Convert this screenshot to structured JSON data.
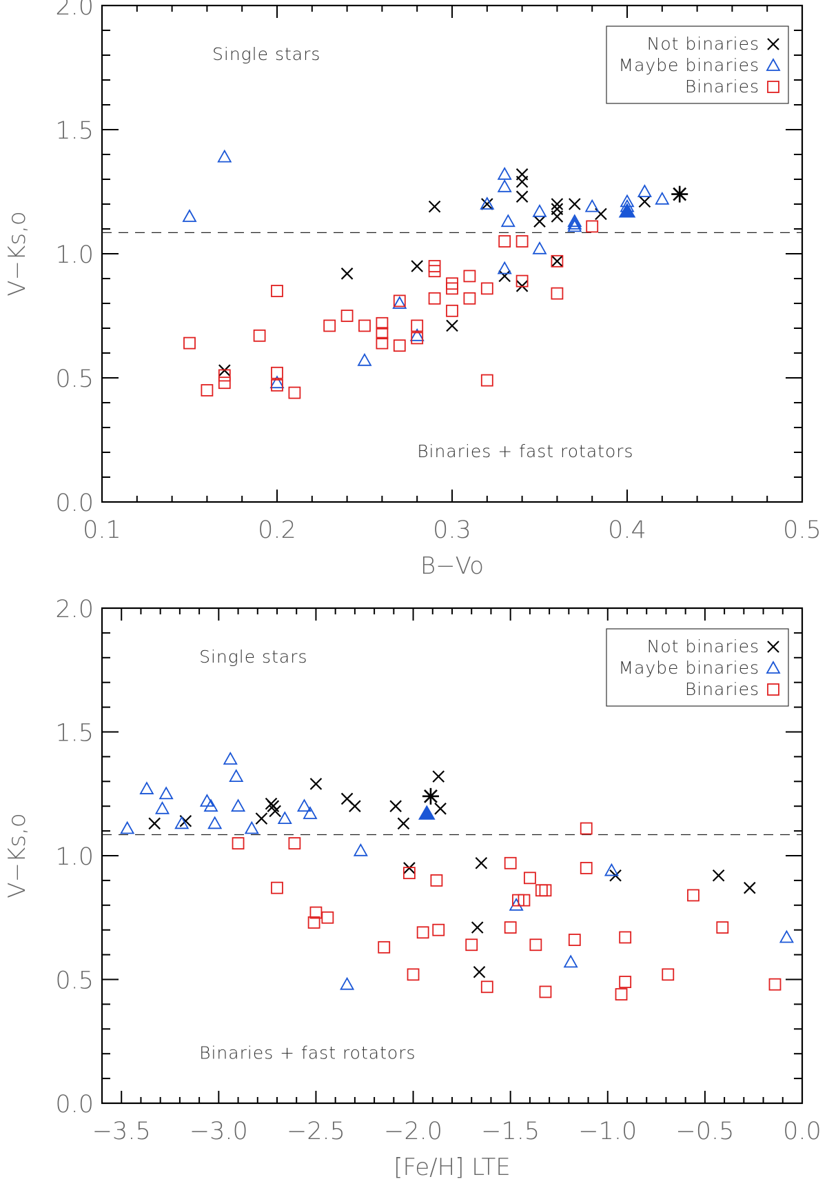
{
  "colors": {
    "not_binaries": "#000000",
    "maybe_binaries": "#1a56d6",
    "binaries": "#e02020",
    "axes": "#000000",
    "text": "#555555"
  },
  "chart_data": [
    {
      "type": "scatter",
      "xlabel": "B−Vo",
      "ylabel": "V−Ks,o",
      "xlim": [
        0.1,
        0.5
      ],
      "ylim": [
        0.0,
        2.0
      ],
      "xticks": [
        0.1,
        0.2,
        0.3,
        0.4,
        0.5
      ],
      "xtick_labels": [
        "0.1",
        "0.2",
        "0.3",
        "0.4",
        "0.5"
      ],
      "yticks": [
        0.0,
        0.5,
        1.0,
        1.5,
        2.0
      ],
      "ytick_labels": [
        "0.0",
        "0.5",
        "1.0",
        "1.5",
        "2.0"
      ],
      "dashed_line_y": 1.085,
      "annotations": [
        {
          "text": "Single stars",
          "x": 0.163,
          "y": 1.78,
          "anchor": "start"
        },
        {
          "text": "Binaries + fast rotators",
          "x": 0.28,
          "y": 0.18,
          "anchor": "start"
        }
      ],
      "legend": {
        "position": "top-right",
        "entries": [
          "Not binaries",
          "Maybe binaries",
          "Binaries"
        ]
      },
      "series": [
        {
          "name": "Not binaries",
          "marker": "x",
          "points": [
            [
              0.17,
              0.53
            ],
            [
              0.24,
              0.92
            ],
            [
              0.28,
              0.95
            ],
            [
              0.29,
              1.19
            ],
            [
              0.3,
              0.71
            ],
            [
              0.32,
              1.2
            ],
            [
              0.33,
              0.91
            ],
            [
              0.34,
              1.32
            ],
            [
              0.34,
              1.29
            ],
            [
              0.34,
              1.23
            ],
            [
              0.34,
              0.87
            ],
            [
              0.35,
              1.13
            ],
            [
              0.36,
              1.2
            ],
            [
              0.36,
              1.18
            ],
            [
              0.36,
              1.15
            ],
            [
              0.36,
              0.97
            ],
            [
              0.37,
              1.2
            ],
            [
              0.385,
              1.16
            ],
            [
              0.41,
              1.21
            ]
          ]
        },
        {
          "name": "Maybe binaries",
          "marker": "triangle",
          "points": [
            [
              0.15,
              1.15
            ],
            [
              0.17,
              1.39
            ],
            [
              0.2,
              0.48
            ],
            [
              0.25,
              0.57
            ],
            [
              0.27,
              0.8
            ],
            [
              0.28,
              0.67
            ],
            [
              0.32,
              1.2
            ],
            [
              0.33,
              1.32
            ],
            [
              0.33,
              1.27
            ],
            [
              0.332,
              1.13
            ],
            [
              0.33,
              0.94
            ],
            [
              0.35,
              1.17
            ],
            [
              0.35,
              1.02
            ],
            [
              0.37,
              1.13
            ],
            [
              0.37,
              1.12
            ],
            [
              0.37,
              1.11
            ],
            [
              0.38,
              1.19
            ],
            [
              0.4,
              1.21
            ],
            [
              0.4,
              1.19
            ],
            [
              0.41,
              1.25
            ],
            [
              0.42,
              1.22
            ]
          ]
        },
        {
          "name": "Binaries",
          "marker": "square",
          "points": [
            [
              0.15,
              0.64
            ],
            [
              0.16,
              0.45
            ],
            [
              0.17,
              0.51
            ],
            [
              0.17,
              0.48
            ],
            [
              0.19,
              0.67
            ],
            [
              0.2,
              0.85
            ],
            [
              0.2,
              0.52
            ],
            [
              0.2,
              0.47
            ],
            [
              0.21,
              0.44
            ],
            [
              0.23,
              0.71
            ],
            [
              0.24,
              0.75
            ],
            [
              0.25,
              0.71
            ],
            [
              0.26,
              0.72
            ],
            [
              0.26,
              0.68
            ],
            [
              0.26,
              0.64
            ],
            [
              0.27,
              0.81
            ],
            [
              0.27,
              0.63
            ],
            [
              0.28,
              0.71
            ],
            [
              0.28,
              0.66
            ],
            [
              0.29,
              0.95
            ],
            [
              0.29,
              0.93
            ],
            [
              0.29,
              0.82
            ],
            [
              0.3,
              0.88
            ],
            [
              0.3,
              0.86
            ],
            [
              0.3,
              0.77
            ],
            [
              0.31,
              0.91
            ],
            [
              0.31,
              0.82
            ],
            [
              0.32,
              0.86
            ],
            [
              0.32,
              0.49
            ],
            [
              0.33,
              1.05
            ],
            [
              0.34,
              1.05
            ],
            [
              0.34,
              0.89
            ],
            [
              0.36,
              0.97
            ],
            [
              0.36,
              0.84
            ],
            [
              0.38,
              1.11
            ]
          ]
        },
        {
          "name": "",
          "marker": "asterisk",
          "points": [
            [
              0.43,
              1.24
            ]
          ]
        },
        {
          "name": "",
          "marker": "filled-triangle",
          "points": [
            [
              0.4,
              1.17
            ]
          ]
        }
      ]
    },
    {
      "type": "scatter",
      "xlabel": "[Fe/H] LTE",
      "ylabel": "V−Ks,o",
      "xlim": [
        -3.6,
        0.0
      ],
      "ylim": [
        0.0,
        2.0
      ],
      "xticks": [
        -3.5,
        -3.0,
        -2.5,
        -2.0,
        -1.5,
        -1.0,
        -0.5,
        0.0
      ],
      "xtick_labels": [
        "−3.5",
        "−3.0",
        "−2.5",
        "−2.0",
        "−1.5",
        "−1.0",
        "−0.5",
        "0.0"
      ],
      "yticks": [
        0.0,
        0.5,
        1.0,
        1.5,
        2.0
      ],
      "ytick_labels": [
        "0.0",
        "0.5",
        "1.0",
        "1.5",
        "2.0"
      ],
      "dashed_line_y": 1.085,
      "annotations": [
        {
          "text": "Single stars",
          "x": -3.1,
          "y": 1.78,
          "anchor": "start"
        },
        {
          "text": "Binaries + fast rotators",
          "x": -3.1,
          "y": 0.18,
          "anchor": "start"
        }
      ],
      "legend": {
        "position": "top-right",
        "entries": [
          "Not binaries",
          "Maybe binaries",
          "Binaries"
        ]
      },
      "series": [
        {
          "name": "Not binaries",
          "marker": "x",
          "points": [
            [
              -3.33,
              1.13
            ],
            [
              -3.17,
              1.14
            ],
            [
              -2.78,
              1.15
            ],
            [
              -2.73,
              1.21
            ],
            [
              -2.72,
              1.2
            ],
            [
              -2.71,
              1.18
            ],
            [
              -2.5,
              1.29
            ],
            [
              -2.34,
              1.23
            ],
            [
              -2.3,
              1.2
            ],
            [
              -2.09,
              1.2
            ],
            [
              -2.05,
              1.13
            ],
            [
              -2.02,
              0.95
            ],
            [
              -1.87,
              1.32
            ],
            [
              -1.86,
              1.19
            ],
            [
              -1.65,
              0.97
            ],
            [
              -1.67,
              0.71
            ],
            [
              -1.66,
              0.53
            ],
            [
              -0.96,
              0.92
            ],
            [
              -0.43,
              0.92
            ],
            [
              -0.27,
              0.87
            ]
          ]
        },
        {
          "name": "Maybe binaries",
          "marker": "triangle",
          "points": [
            [
              -3.47,
              1.11
            ],
            [
              -3.37,
              1.27
            ],
            [
              -3.29,
              1.19
            ],
            [
              -3.27,
              1.25
            ],
            [
              -3.19,
              1.13
            ],
            [
              -3.06,
              1.22
            ],
            [
              -3.04,
              1.2
            ],
            [
              -3.02,
              1.13
            ],
            [
              -2.94,
              1.39
            ],
            [
              -2.91,
              1.32
            ],
            [
              -2.9,
              1.2
            ],
            [
              -2.83,
              1.11
            ],
            [
              -2.66,
              1.15
            ],
            [
              -2.56,
              1.2
            ],
            [
              -2.53,
              1.17
            ],
            [
              -2.27,
              1.02
            ],
            [
              -2.34,
              0.48
            ],
            [
              -1.47,
              0.8
            ],
            [
              -1.19,
              0.57
            ],
            [
              -0.98,
              0.94
            ],
            [
              -0.08,
              0.67
            ]
          ]
        },
        {
          "name": "Binaries",
          "marker": "square",
          "points": [
            [
              -2.9,
              1.05
            ],
            [
              -2.7,
              0.87
            ],
            [
              -2.61,
              1.05
            ],
            [
              -2.5,
              0.77
            ],
            [
              -2.51,
              0.73
            ],
            [
              -2.44,
              0.75
            ],
            [
              -2.15,
              0.63
            ],
            [
              -2.02,
              0.93
            ],
            [
              -2.0,
              0.52
            ],
            [
              -1.95,
              0.69
            ],
            [
              -1.88,
              0.9
            ],
            [
              -1.87,
              0.7
            ],
            [
              -1.7,
              0.64
            ],
            [
              -1.62,
              0.47
            ],
            [
              -1.5,
              0.97
            ],
            [
              -1.5,
              0.71
            ],
            [
              -1.46,
              0.82
            ],
            [
              -1.43,
              0.82
            ],
            [
              -1.4,
              0.91
            ],
            [
              -1.37,
              0.64
            ],
            [
              -1.34,
              0.86
            ],
            [
              -1.32,
              0.86
            ],
            [
              -1.32,
              0.45
            ],
            [
              -1.17,
              0.66
            ],
            [
              -1.11,
              0.95
            ],
            [
              -1.11,
              1.11
            ],
            [
              -0.93,
              0.44
            ],
            [
              -0.91,
              0.49
            ],
            [
              -0.91,
              0.67
            ],
            [
              -0.69,
              0.52
            ],
            [
              -0.56,
              0.84
            ],
            [
              -0.41,
              0.71
            ],
            [
              -0.14,
              0.48
            ]
          ]
        },
        {
          "name": "",
          "marker": "asterisk",
          "points": [
            [
              -1.91,
              1.24
            ]
          ]
        },
        {
          "name": "",
          "marker": "filled-triangle",
          "points": [
            [
              -1.93,
              1.17
            ]
          ]
        }
      ]
    }
  ]
}
